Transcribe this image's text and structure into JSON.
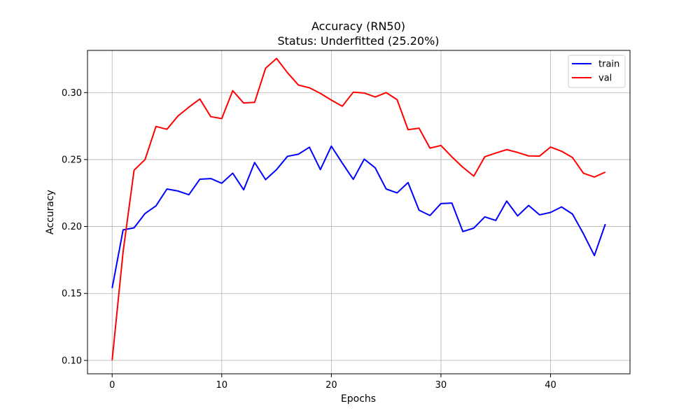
{
  "chart_data": {
    "type": "line",
    "title": "Accuracy (RN50)",
    "subtitle": "Status: Underfitted (25.20%)",
    "xlabel": "Epochs",
    "ylabel": "Accuracy",
    "xlim": [
      -2.25,
      47.25
    ],
    "ylim": [
      0.09,
      0.3315
    ],
    "xticks": [
      0,
      10,
      20,
      30,
      40
    ],
    "yticks": [
      0.1,
      0.15,
      0.2,
      0.25,
      0.3
    ],
    "ytick_labels": [
      "0.10",
      "0.15",
      "0.20",
      "0.25",
      "0.30"
    ],
    "grid": true,
    "legend_position": "top-right",
    "x": [
      0,
      1,
      2,
      3,
      4,
      5,
      6,
      7,
      8,
      9,
      10,
      11,
      12,
      13,
      14,
      15,
      16,
      17,
      18,
      19,
      20,
      21,
      22,
      23,
      24,
      25,
      26,
      27,
      28,
      29,
      30,
      31,
      32,
      33,
      34,
      35,
      36,
      37,
      38,
      39,
      40,
      41,
      42,
      43,
      44,
      45
    ],
    "series": [
      {
        "name": "train",
        "color": "#0000ff",
        "values": [
          0.154,
          0.1975,
          0.199,
          0.2097,
          0.2154,
          0.228,
          0.2265,
          0.2237,
          0.2353,
          0.2358,
          0.2323,
          0.2398,
          0.2274,
          0.2478,
          0.235,
          0.2425,
          0.2524,
          0.254,
          0.2592,
          0.2425,
          0.26,
          0.2473,
          0.2352,
          0.2503,
          0.2438,
          0.228,
          0.2251,
          0.2328,
          0.2122,
          0.2082,
          0.2171,
          0.2175,
          0.1962,
          0.1988,
          0.2072,
          0.2045,
          0.219,
          0.2079,
          0.2157,
          0.2087,
          0.2105,
          0.2146,
          0.2093,
          0.1946,
          0.1783,
          0.2018
        ]
      },
      {
        "name": "val",
        "color": "#ff0000",
        "values": [
          0.1002,
          0.1812,
          0.242,
          0.25,
          0.2747,
          0.2726,
          0.2825,
          0.2891,
          0.2952,
          0.282,
          0.2806,
          0.3014,
          0.2922,
          0.2927,
          0.3182,
          0.3255,
          0.3148,
          0.3056,
          0.3036,
          0.2994,
          0.2944,
          0.2898,
          0.3003,
          0.2997,
          0.2967,
          0.3,
          0.2947,
          0.2723,
          0.2734,
          0.2585,
          0.2605,
          0.252,
          0.2442,
          0.2376,
          0.2521,
          0.2548,
          0.2574,
          0.2553,
          0.2527,
          0.2526,
          0.2593,
          0.2562,
          0.2515,
          0.2398,
          0.2369,
          0.2406
        ]
      }
    ]
  }
}
